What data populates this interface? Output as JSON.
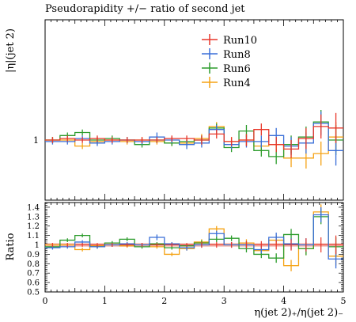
{
  "chart_data": [
    {
      "panel": "main",
      "type": "line",
      "style": "histogram-step-with-errorbars",
      "title": "Pseudorapidity +/− ratio of second jet",
      "xlabel": "",
      "ylabel": "|η|(jet 2)",
      "yticks": [
        "1"
      ],
      "ylim": [
        0.6,
        1.8
      ],
      "xlim": [
        0,
        5
      ],
      "legend": "top-right",
      "x_edges": [
        0,
        0.25,
        0.5,
        0.75,
        1,
        1.25,
        1.5,
        1.75,
        2,
        2.25,
        2.5,
        2.75,
        3,
        3.25,
        3.5,
        3.75,
        4,
        4.25,
        4.5,
        4.75,
        5
      ],
      "series": [
        {
          "name": "Run10",
          "color": "#e8372a",
          "values": [
            1.0,
            1.01,
            1.0,
            1.01,
            1.0,
            1.0,
            1.0,
            1.0,
            1.01,
            1.01,
            1.0,
            1.04,
            0.99,
            1.0,
            1.07,
            0.97,
            0.94,
            1.01,
            1.09,
            1.08
          ],
          "errors": [
            0.02,
            0.02,
            0.02,
            0.02,
            0.02,
            0.02,
            0.02,
            0.02,
            0.02,
            0.02,
            0.03,
            0.03,
            0.03,
            0.04,
            0.04,
            0.05,
            0.06,
            0.07,
            0.08,
            0.1
          ]
        },
        {
          "name": "Run8",
          "color": "#3a6fd8",
          "values": [
            0.99,
            0.99,
            1.01,
            0.98,
            0.99,
            1.0,
            0.99,
            1.02,
            1.0,
            0.97,
            0.98,
            1.07,
            0.97,
            0.99,
            0.99,
            1.03,
            0.96,
            0.98,
            1.11,
            0.93
          ],
          "errors": [
            0.02,
            0.02,
            0.02,
            0.02,
            0.02,
            0.02,
            0.02,
            0.03,
            0.02,
            0.03,
            0.03,
            0.03,
            0.03,
            0.04,
            0.04,
            0.05,
            0.06,
            0.07,
            0.08,
            0.1
          ]
        },
        {
          "name": "Run6",
          "color": "#2c9c2c",
          "values": [
            1.0,
            1.03,
            1.05,
            1.0,
            1.01,
            1.0,
            0.97,
            1.0,
            0.98,
            0.99,
            1.0,
            1.08,
            0.95,
            1.06,
            0.93,
            0.89,
            0.97,
            1.02,
            1.12,
            1.0
          ],
          "errors": [
            0.02,
            0.02,
            0.02,
            0.02,
            0.02,
            0.02,
            0.02,
            0.02,
            0.02,
            0.02,
            0.03,
            0.03,
            0.03,
            0.04,
            0.04,
            0.05,
            0.06,
            0.07,
            0.08,
            0.1
          ]
        },
        {
          "name": "Run4",
          "color": "#f5a213",
          "values": [
            1.0,
            1.0,
            0.96,
            0.99,
            1.0,
            0.99,
            1.0,
            0.99,
            0.98,
            0.98,
            1.01,
            1.09,
            0.99,
            1.0,
            0.96,
            0.97,
            0.88,
            0.88,
            0.91,
            1.02
          ],
          "errors": [
            0.02,
            0.02,
            0.02,
            0.02,
            0.02,
            0.02,
            0.02,
            0.02,
            0.02,
            0.02,
            0.03,
            0.03,
            0.03,
            0.04,
            0.04,
            0.05,
            0.06,
            0.07,
            0.08,
            0.1
          ]
        }
      ]
    },
    {
      "panel": "ratio",
      "type": "line",
      "style": "histogram-step-with-errorbars",
      "xlabel": "η(jet 2)₊/η(jet 2)₋",
      "ylabel": "Ratio",
      "xlim": [
        0,
        5
      ],
      "ylim": [
        0.5,
        1.45
      ],
      "xticks": [
        "0",
        "1",
        "2",
        "3",
        "4",
        "5"
      ],
      "yticks": [
        "0.5",
        "0.6",
        "0.7",
        "0.8",
        "0.9",
        "1",
        "1.1",
        "1.2",
        "1.3",
        "1.4"
      ],
      "reference_band": {
        "center": 1.0,
        "half_width": 0.02,
        "color": "#f5c6c0"
      },
      "x_edges": [
        0,
        0.25,
        0.5,
        0.75,
        1,
        1.25,
        1.5,
        1.75,
        2,
        2.25,
        2.5,
        2.75,
        3,
        3.25,
        3.5,
        3.75,
        4,
        4.25,
        4.5,
        4.75,
        5
      ],
      "series": [
        {
          "name": "Run8",
          "color": "#3a6fd8",
          "values": [
            0.97,
            0.98,
            1.03,
            0.98,
            1.0,
            1.01,
            1.0,
            1.08,
            1.01,
            0.97,
            1.0,
            1.12,
            1.0,
            1.0,
            0.95,
            1.08,
            1.01,
            1.0,
            1.32,
            0.85
          ],
          "errors": [
            0.02,
            0.02,
            0.02,
            0.02,
            0.02,
            0.02,
            0.02,
            0.03,
            0.02,
            0.03,
            0.03,
            0.03,
            0.03,
            0.04,
            0.04,
            0.05,
            0.06,
            0.07,
            0.08,
            0.1
          ]
        },
        {
          "name": "Run6",
          "color": "#2c9c2c",
          "values": [
            0.98,
            1.05,
            1.1,
            0.98,
            1.02,
            1.06,
            0.98,
            1.01,
            0.97,
            0.99,
            1.02,
            1.06,
            1.07,
            0.96,
            0.9,
            0.86,
            1.11,
            0.96,
            1.3,
            0.98
          ],
          "errors": [
            0.02,
            0.02,
            0.02,
            0.02,
            0.02,
            0.02,
            0.02,
            0.02,
            0.02,
            0.02,
            0.03,
            0.03,
            0.03,
            0.04,
            0.04,
            0.05,
            0.06,
            0.07,
            0.08,
            0.1
          ]
        },
        {
          "name": "Run4",
          "color": "#f5a213",
          "values": [
            1.0,
            1.0,
            0.95,
            0.99,
            1.0,
            0.99,
            1.0,
            0.98,
            0.9,
            0.96,
            1.03,
            1.17,
            1.0,
            1.02,
            0.94,
            1.05,
            0.78,
            0.96,
            1.35,
            0.88
          ],
          "errors": [
            0.02,
            0.02,
            0.02,
            0.02,
            0.02,
            0.02,
            0.02,
            0.02,
            0.02,
            0.02,
            0.03,
            0.03,
            0.03,
            0.04,
            0.04,
            0.05,
            0.06,
            0.07,
            0.08,
            0.1
          ]
        }
      ]
    }
  ]
}
